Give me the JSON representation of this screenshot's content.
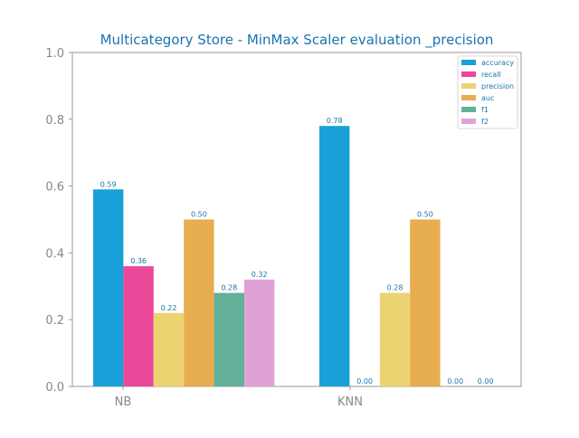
{
  "chart_data": {
    "type": "bar",
    "title": "Multicategory Store - MinMax Scaler evaluation _precision",
    "xlabel": "",
    "ylabel": "",
    "categories": [
      "NB",
      "KNN"
    ],
    "ylim": [
      0,
      1
    ],
    "yticks": [
      "0.0",
      "0.2",
      "0.4",
      "0.6",
      "0.8",
      "1.0"
    ],
    "grid": false,
    "legend_position": "top-right",
    "series": [
      {
        "name": "accuracy",
        "color": "#1aa0d8",
        "values": [
          0.59,
          0.78
        ],
        "labels": [
          "0.59",
          "0.78"
        ]
      },
      {
        "name": "recall",
        "color": "#ec4899",
        "values": [
          0.36,
          0.0
        ],
        "labels": [
          "0.36",
          "0.00"
        ]
      },
      {
        "name": "precision",
        "color": "#ecd372",
        "values": [
          0.22,
          0.28
        ],
        "labels": [
          "0.22",
          "0.28"
        ]
      },
      {
        "name": "auc",
        "color": "#e8ad4e",
        "values": [
          0.5,
          0.5
        ],
        "labels": [
          "0.50",
          "0.50"
        ]
      },
      {
        "name": "f1",
        "color": "#63b09b",
        "values": [
          0.28,
          0.0
        ],
        "labels": [
          "0.28",
          "0.00"
        ]
      },
      {
        "name": "f2",
        "color": "#e0a2d6",
        "values": [
          0.32,
          0.0
        ],
        "labels": [
          "0.32",
          "0.00"
        ]
      }
    ],
    "colors": {
      "title": "#1a73b0",
      "axis": "#999999",
      "tick_label": "#888888",
      "value_label": "#1a73b0",
      "legend_text": "#1a73b0"
    }
  }
}
